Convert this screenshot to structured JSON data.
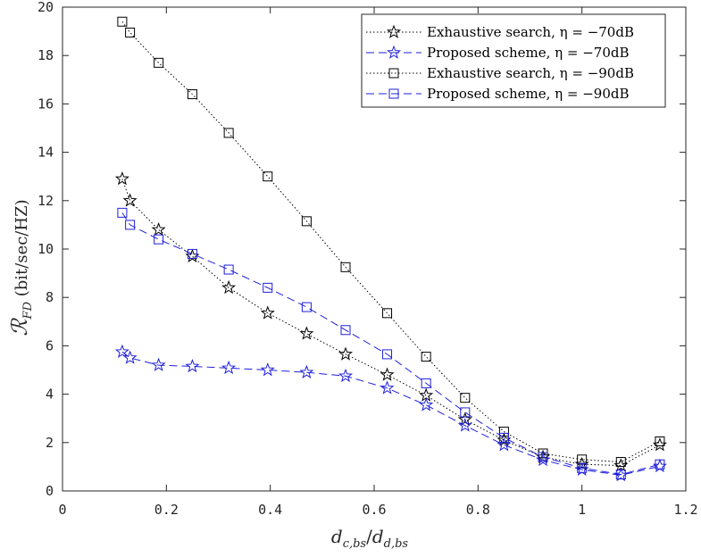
{
  "chart_data": {
    "type": "line",
    "xlabel": "d_{c,bs}/d_{d,bs}",
    "ylabel": "ℛ_{FD} (bit/sec/HZ)",
    "xlim": [
      0,
      1.2
    ],
    "ylim": [
      0,
      20
    ],
    "xticks": [
      "0",
      "0.2",
      "0.4",
      "0.6",
      "0.8",
      "1",
      "1.2"
    ],
    "yticks": [
      "0",
      "2",
      "4",
      "6",
      "8",
      "10",
      "12",
      "14",
      "16",
      "18",
      "20"
    ],
    "grid": false,
    "legend_position": "top-right",
    "x": [
      0.115,
      0.13,
      0.185,
      0.25,
      0.32,
      0.395,
      0.47,
      0.545,
      0.625,
      0.7,
      0.775,
      0.85,
      0.925,
      1.0,
      1.075,
      1.15
    ],
    "series": [
      {
        "name": "Exhaustive search, η = −70dB",
        "color": "#000000",
        "line_style": "dotted",
        "marker": "star",
        "values": [
          12.9,
          12.0,
          10.8,
          9.7,
          8.4,
          7.35,
          6.5,
          5.65,
          4.8,
          3.95,
          2.95,
          2.1,
          1.4,
          1.1,
          1.05,
          1.9
        ]
      },
      {
        "name": "Proposed scheme, η = −70dB",
        "color": "#1f1fdc",
        "line_style": "dashed",
        "marker": "star",
        "values": [
          5.75,
          5.5,
          5.2,
          5.15,
          5.08,
          5.0,
          4.9,
          4.75,
          4.25,
          3.55,
          2.7,
          1.9,
          1.28,
          0.88,
          0.65,
          1.02
        ]
      },
      {
        "name": "Exhaustive search, η = −90dB",
        "color": "#000000",
        "line_style": "dotted",
        "marker": "square",
        "values": [
          19.4,
          18.95,
          17.7,
          16.4,
          14.8,
          13.0,
          11.15,
          9.25,
          7.35,
          5.55,
          3.85,
          2.45,
          1.55,
          1.3,
          1.2,
          2.05
        ]
      },
      {
        "name": "Proposed scheme, η = −90dB",
        "color": "#1f1fdc",
        "line_style": "dashed",
        "marker": "square",
        "values": [
          11.5,
          11.0,
          10.4,
          9.8,
          9.15,
          8.4,
          7.6,
          6.65,
          5.65,
          4.45,
          3.25,
          2.2,
          1.4,
          0.95,
          0.68,
          1.1
        ]
      }
    ]
  }
}
